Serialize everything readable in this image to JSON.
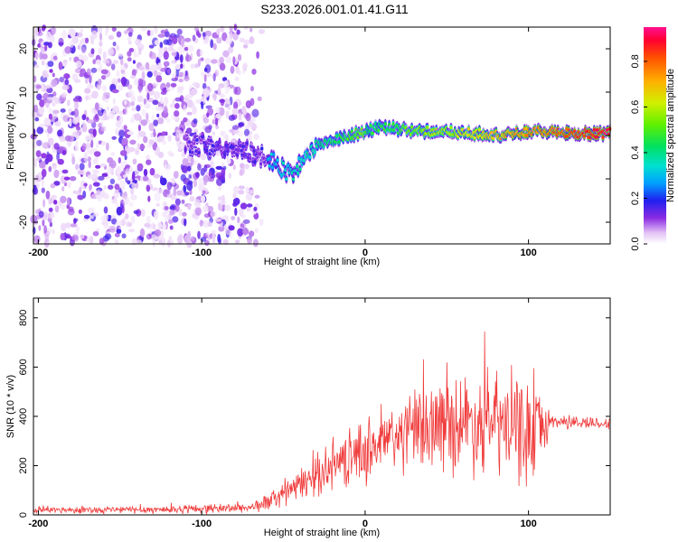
{
  "title": "S233.2026.001.01.41.G11",
  "chart_data": [
    {
      "type": "heatmap",
      "name": "spectrogram",
      "xlabel": "Height of straight line (km)",
      "ylabel": "Frequency (Hz)",
      "xlim": [
        -203,
        150
      ],
      "ylim": [
        -25,
        25
      ],
      "xticks": [
        "-200",
        "-100",
        "0",
        "100"
      ],
      "xtick_values": [
        -200,
        -100,
        0,
        100
      ],
      "yticks": [
        "20",
        "10",
        "0",
        "-10",
        "-20"
      ],
      "ytick_values": [
        20,
        10,
        0,
        -10,
        -20
      ],
      "colorbar": {
        "label": "Normalized spectral amplitude",
        "range": [
          0,
          0.95
        ],
        "ticks": [
          "0.8",
          "0.6",
          "0.4",
          "0.2",
          "0.0"
        ],
        "tick_values": [
          0.8,
          0.6,
          0.4,
          0.2,
          0.0
        ]
      },
      "description_points": [
        {
          "x": -100,
          "y": -2
        },
        {
          "x": -80,
          "y": -3
        },
        {
          "x": -60,
          "y": -5
        },
        {
          "x": -45,
          "y": -9
        },
        {
          "x": -30,
          "y": -2
        },
        {
          "x": -10,
          "y": 0
        },
        {
          "x": 10,
          "y": 2
        },
        {
          "x": 30,
          "y": 1
        },
        {
          "x": 50,
          "y": 1
        },
        {
          "x": 80,
          "y": 0
        },
        {
          "x": 100,
          "y": 1
        },
        {
          "x": 130,
          "y": 0.5
        },
        {
          "x": 150,
          "y": 0.5
        }
      ]
    },
    {
      "type": "line",
      "name": "snr",
      "xlabel": "Height of straight line (km)",
      "ylabel": "SNR (10 * v/v)",
      "xlim": [
        -203,
        150
      ],
      "ylim": [
        0,
        880
      ],
      "xticks": [
        "-200",
        "-100",
        "0",
        "100"
      ],
      "xtick_values": [
        -200,
        -100,
        0,
        100
      ],
      "yticks": [
        "800",
        "600",
        "400",
        "200",
        "0"
      ],
      "ytick_values": [
        800,
        600,
        400,
        200,
        0
      ],
      "series_color": "#f03c3c",
      "envelope": {
        "x": [
          -203,
          -120,
          -70,
          -60,
          -40,
          -20,
          0,
          20,
          40,
          60,
          80,
          100,
          115,
          150
        ],
        "y": [
          20,
          22,
          30,
          50,
          120,
          200,
          260,
          320,
          360,
          380,
          370,
          330,
          380,
          370
        ]
      },
      "spread": {
        "x": [
          -203,
          -70,
          -40,
          0,
          20,
          50,
          80,
          100,
          115,
          150
        ],
        "y": [
          15,
          25,
          80,
          160,
          190,
          240,
          260,
          280,
          40,
          30
        ]
      }
    }
  ],
  "colors": {
    "background": "#ffffff",
    "axis": "#000000",
    "snr_line": "#f03c3c"
  }
}
